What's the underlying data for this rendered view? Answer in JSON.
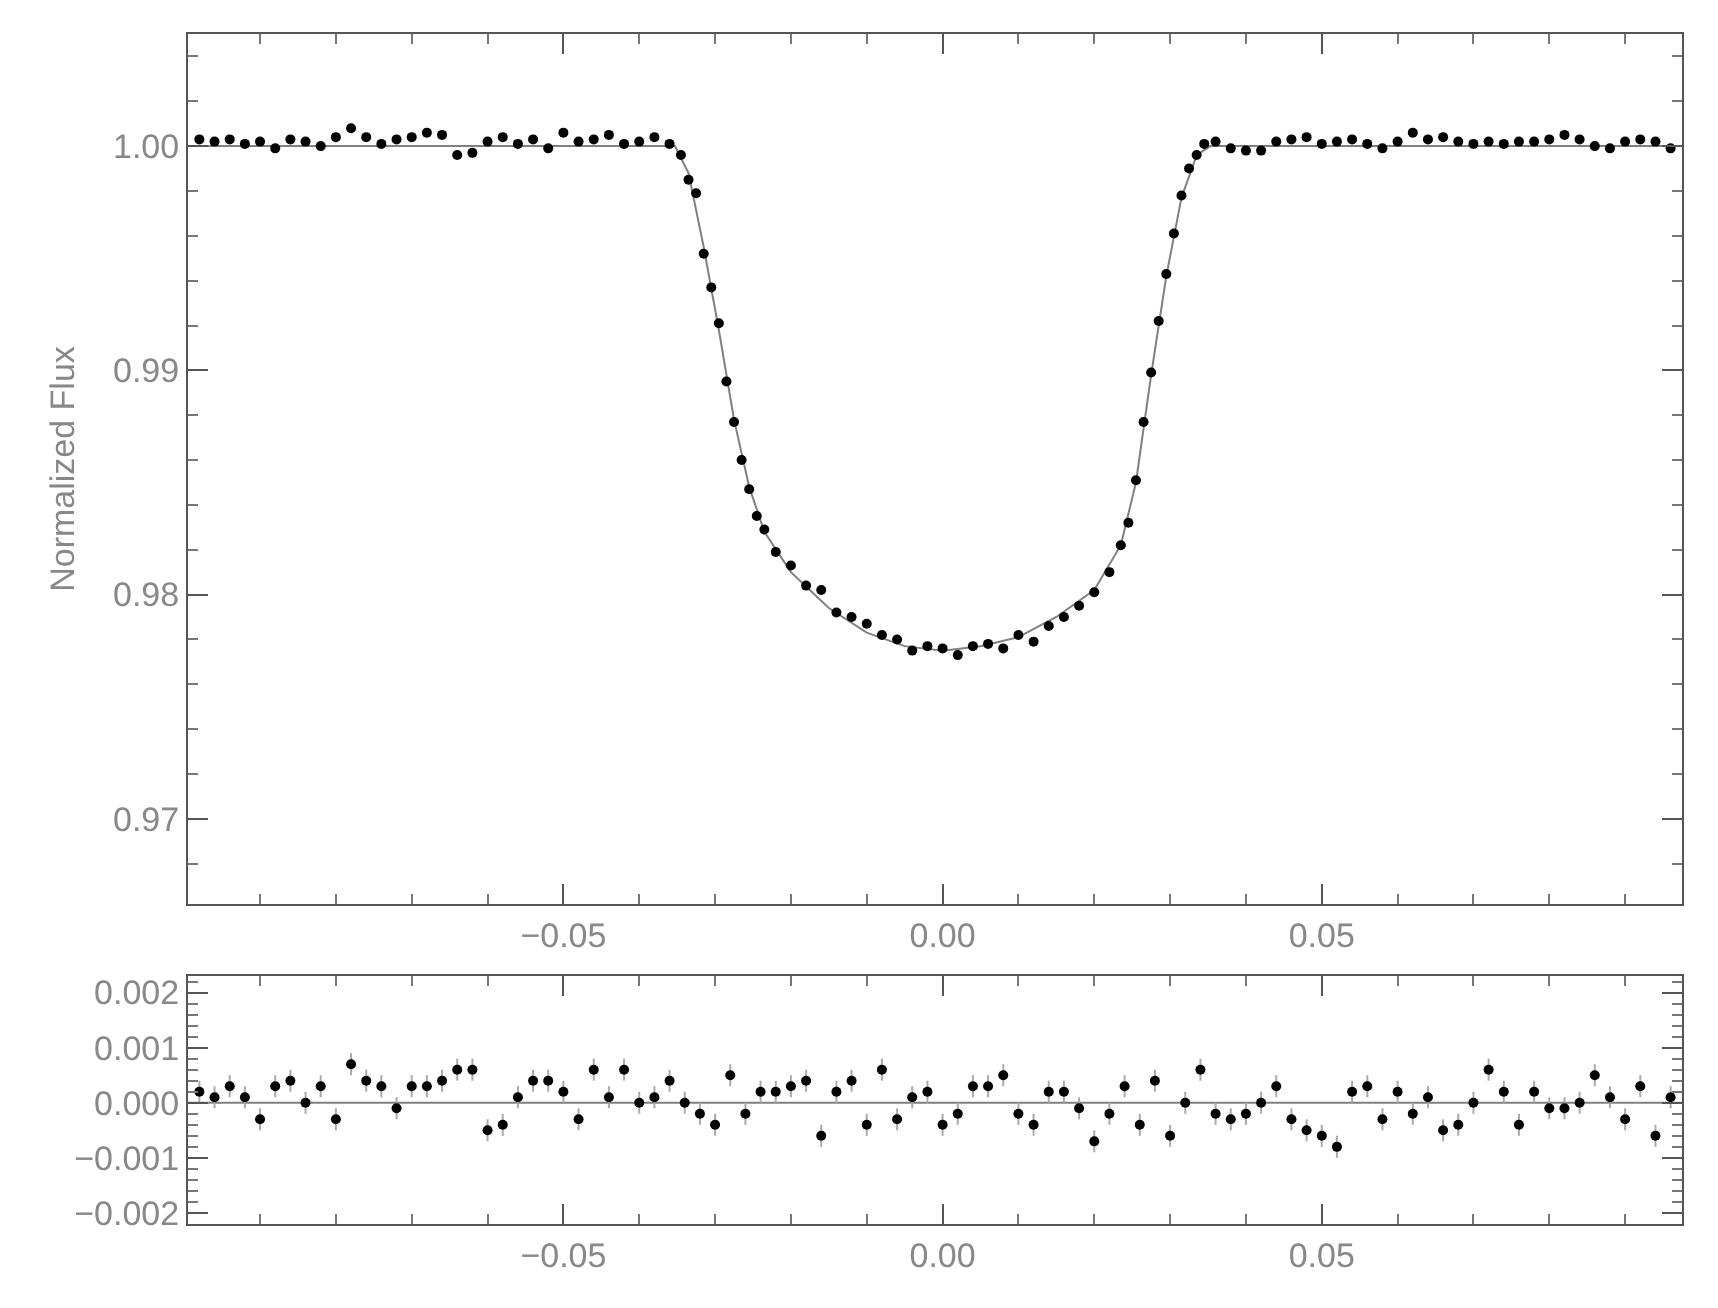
{
  "chart_data": [
    {
      "type": "scatter",
      "ylabel": "Normalized Flux",
      "xlim": [
        -0.0995,
        0.0975
      ],
      "ylim": [
        0.9662,
        1.005
      ],
      "xticks": [
        {
          "value": -0.05,
          "label": "−0.05"
        },
        {
          "value": 0,
          "label": "0.00"
        },
        {
          "value": 0.05,
          "label": "0.05"
        }
      ],
      "yticks": [
        0.97,
        0.98,
        0.99,
        {
          "value": 1.0,
          "label": "1.00"
        }
      ],
      "grid": false,
      "series": [
        {
          "type": "line",
          "marker": "none",
          "color": "#808080",
          "line_style": "solid",
          "x": [
            -0.0995,
            -0.0353,
            -0.0335,
            -0.0315,
            -0.0295,
            -0.0275,
            -0.0255,
            -0.0235,
            -0.02,
            -0.015,
            -0.01,
            -0.005,
            0,
            0.005,
            0.01,
            0.015,
            0.02,
            0.0235,
            0.0255,
            0.0275,
            0.0295,
            0.0315,
            0.0335,
            0.0353,
            0.0975
          ],
          "values": [
            1.0,
            1.0,
            0.9988,
            0.9955,
            0.9918,
            0.9878,
            0.9848,
            0.9828,
            0.981,
            0.9794,
            0.9783,
            0.9777,
            0.9775,
            0.9777,
            0.9781,
            0.979,
            0.9802,
            0.9822,
            0.985,
            0.9898,
            0.9942,
            0.9977,
            0.9996,
            1.0,
            1.0
          ]
        },
        {
          "marker": "circle",
          "color": "#000000",
          "x": [
            -0.098,
            -0.096,
            -0.094,
            -0.092,
            -0.09,
            -0.088,
            -0.086,
            -0.084,
            -0.082,
            -0.08,
            -0.078,
            -0.076,
            -0.074,
            -0.072,
            -0.07,
            -0.068,
            -0.066,
            -0.064,
            -0.062,
            -0.06,
            -0.058,
            -0.056,
            -0.054,
            -0.052,
            -0.05,
            -0.048,
            -0.046,
            -0.044,
            -0.042,
            -0.04,
            -0.038,
            -0.036,
            -0.0345,
            -0.0335,
            -0.0325,
            -0.0315,
            -0.0305,
            -0.0295,
            -0.0285,
            -0.0275,
            -0.0265,
            -0.0255,
            -0.0245,
            -0.0235,
            -0.022,
            -0.02,
            -0.018,
            -0.016,
            -0.014,
            -0.012,
            -0.01,
            -0.008,
            -0.006,
            -0.004,
            -0.002,
            0.0,
            0.002,
            0.004,
            0.006,
            0.008,
            0.01,
            0.012,
            0.014,
            0.016,
            0.018,
            0.02,
            0.022,
            0.0235,
            0.0245,
            0.0255,
            0.0265,
            0.0275,
            0.0285,
            0.0295,
            0.0305,
            0.0315,
            0.0325,
            0.0335,
            0.0345,
            0.036,
            0.038,
            0.04,
            0.042,
            0.044,
            0.046,
            0.048,
            0.05,
            0.052,
            0.054,
            0.056,
            0.058,
            0.06,
            0.062,
            0.064,
            0.066,
            0.068,
            0.07,
            0.072,
            0.074,
            0.076,
            0.078,
            0.08,
            0.082,
            0.084,
            0.086,
            0.088,
            0.09,
            0.092,
            0.094,
            0.096
          ],
          "values": [
            1.0003,
            1.0002,
            1.0003,
            1.0001,
            1.0002,
            0.9999,
            1.0003,
            1.0002,
            1.0,
            1.0004,
            1.0008,
            1.0004,
            1.0001,
            1.0003,
            1.0004,
            1.0006,
            1.0005,
            0.9996,
            0.9997,
            1.0002,
            1.0004,
            1.0001,
            1.0003,
            0.9999,
            1.0006,
            1.0002,
            1.0003,
            1.0005,
            1.0001,
            1.0002,
            1.0004,
            1.0001,
            0.9996,
            0.9985,
            0.9979,
            0.9952,
            0.9937,
            0.9921,
            0.9895,
            0.9877,
            0.986,
            0.9847,
            0.9835,
            0.9829,
            0.9819,
            0.9813,
            0.9804,
            0.9802,
            0.9792,
            0.979,
            0.9787,
            0.9782,
            0.978,
            0.9775,
            0.9777,
            0.9776,
            0.9773,
            0.9777,
            0.9778,
            0.9776,
            0.9782,
            0.9779,
            0.9786,
            0.979,
            0.9795,
            0.9801,
            0.981,
            0.9822,
            0.9832,
            0.9851,
            0.9877,
            0.9899,
            0.9922,
            0.9943,
            0.9961,
            0.9978,
            0.999,
            0.9996,
            1.0001,
            1.0002,
            0.9999,
            0.9998,
            0.9998,
            1.0002,
            1.0003,
            1.0004,
            1.0001,
            1.0002,
            1.0003,
            1.0001,
            0.9999,
            1.0002,
            1.0006,
            1.0003,
            1.0004,
            1.0002,
            1.0001,
            1.0002,
            1.0001,
            1.0002,
            1.0002,
            1.0003,
            1.0005,
            1.0003,
            1.0,
            0.9999,
            1.0002,
            1.0003,
            1.0002,
            0.9999
          ]
        }
      ]
    },
    {
      "type": "scatter",
      "xlim": [
        -0.0995,
        0.0975
      ],
      "ylim": [
        -0.0022,
        0.0023
      ],
      "xticks": [
        {
          "value": -0.05,
          "label": "−0.05"
        },
        {
          "value": 0,
          "label": "0.00"
        },
        {
          "value": 0.05,
          "label": "0.05"
        }
      ],
      "yticks": [
        {
          "value": -0.002,
          "label": "−0.002"
        },
        {
          "value": -0.001,
          "label": "−0.001"
        },
        {
          "value": 0,
          "label": "0.000"
        },
        {
          "value": 0.001,
          "label": "0.001"
        },
        {
          "value": 0.002,
          "label": "0.002"
        }
      ],
      "grid": false,
      "ref_lines": [
        {
          "axis": "y",
          "value": 0,
          "color": "#808080",
          "line_style": "solid"
        }
      ],
      "series": [
        {
          "marker": "circle",
          "color": "#000000",
          "x": [
            -0.098,
            -0.096,
            -0.094,
            -0.092,
            -0.09,
            -0.088,
            -0.086,
            -0.084,
            -0.082,
            -0.08,
            -0.078,
            -0.076,
            -0.074,
            -0.072,
            -0.07,
            -0.068,
            -0.066,
            -0.064,
            -0.062,
            -0.06,
            -0.058,
            -0.056,
            -0.054,
            -0.052,
            -0.05,
            -0.048,
            -0.046,
            -0.044,
            -0.042,
            -0.04,
            -0.038,
            -0.036,
            -0.034,
            -0.032,
            -0.03,
            -0.028,
            -0.026,
            -0.024,
            -0.022,
            -0.02,
            -0.018,
            -0.016,
            -0.014,
            -0.012,
            -0.01,
            -0.008,
            -0.006,
            -0.004,
            -0.002,
            0.0,
            0.002,
            0.004,
            0.006,
            0.008,
            0.01,
            0.012,
            0.014,
            0.016,
            0.018,
            0.02,
            0.022,
            0.024,
            0.026,
            0.028,
            0.03,
            0.032,
            0.034,
            0.036,
            0.038,
            0.04,
            0.042,
            0.044,
            0.046,
            0.048,
            0.05,
            0.052,
            0.054,
            0.056,
            0.058,
            0.06,
            0.062,
            0.064,
            0.066,
            0.068,
            0.07,
            0.072,
            0.074,
            0.076,
            0.078,
            0.08,
            0.082,
            0.084,
            0.086,
            0.088,
            0.09,
            0.092,
            0.094,
            0.096
          ],
          "values": [
            0.0002,
            0.0001,
            0.0003,
            0.0001,
            -0.0003,
            0.0003,
            0.0004,
            0.0,
            0.0003,
            -0.0003,
            0.0007,
            0.0004,
            0.0003,
            -0.0001,
            0.0003,
            0.0003,
            0.0004,
            0.0006,
            0.0006,
            -0.0005,
            -0.0004,
            0.0001,
            0.0004,
            0.0004,
            0.0002,
            -0.0003,
            0.0006,
            0.0001,
            0.0006,
            0.0,
            0.0001,
            0.0004,
            0.0,
            -0.0002,
            -0.0004,
            0.0005,
            -0.0002,
            0.0002,
            0.0002,
            0.0003,
            0.0004,
            -0.0006,
            0.0002,
            0.0004,
            -0.0004,
            0.0006,
            -0.0003,
            0.0001,
            0.0002,
            -0.0004,
            -0.0002,
            0.0003,
            0.0003,
            0.0005,
            -0.0002,
            -0.0004,
            0.0002,
            0.0002,
            -0.0001,
            -0.0007,
            -0.0002,
            0.0003,
            -0.0004,
            0.0004,
            -0.0006,
            0.0,
            0.0006,
            -0.0002,
            -0.0003,
            -0.0002,
            0.0,
            0.0003,
            -0.0003,
            -0.0005,
            -0.0006,
            -0.0008,
            0.0002,
            0.0003,
            -0.0003,
            0.0002,
            -0.0002,
            0.0001,
            -0.0005,
            -0.0004,
            0.0,
            0.0006,
            0.0002,
            -0.0004,
            0.0002,
            -0.0001,
            -0.0001,
            0.0,
            0.0005,
            0.0001,
            -0.0003,
            0.0003,
            -0.0006,
            0.0001
          ],
          "errors": [
            0.0002,
            0.0002,
            0.0002,
            0.0002,
            0.0002,
            0.0002,
            0.0002,
            0.0002,
            0.0002,
            0.0002,
            0.0002,
            0.0002,
            0.0002,
            0.0002,
            0.0002,
            0.0002,
            0.0002,
            0.0002,
            0.0002,
            0.0002,
            0.0002,
            0.0002,
            0.0002,
            0.0002,
            0.0002,
            0.0002,
            0.0002,
            0.0002,
            0.0002,
            0.0002,
            0.0002,
            0.0002,
            0.0002,
            0.0002,
            0.0002,
            0.0002,
            0.0002,
            0.0002,
            0.0002,
            0.0002,
            0.0002,
            0.0002,
            0.0002,
            0.0002,
            0.0002,
            0.0002,
            0.0002,
            0.0002,
            0.0002,
            0.0002,
            0.0002,
            0.0002,
            0.0002,
            0.0002,
            0.0002,
            0.0002,
            0.0002,
            0.0002,
            0.0002,
            0.0002,
            0.0002,
            0.0002,
            0.0002,
            0.0002,
            0.0002,
            0.0002,
            0.0002,
            0.0002,
            0.0002,
            0.0002,
            0.0002,
            0.0002,
            0.0002,
            0.0002,
            0.0002,
            0.0002,
            0.0002,
            0.0002,
            0.0002,
            0.0002,
            0.0002,
            0.0002,
            0.0002,
            0.0002,
            0.0002,
            0.0002,
            0.0002,
            0.0002,
            0.0002,
            0.0002,
            0.0002,
            0.0002,
            0.0002,
            0.0002,
            0.0002,
            0.0002,
            0.0002,
            0.0002
          ]
        }
      ]
    }
  ]
}
